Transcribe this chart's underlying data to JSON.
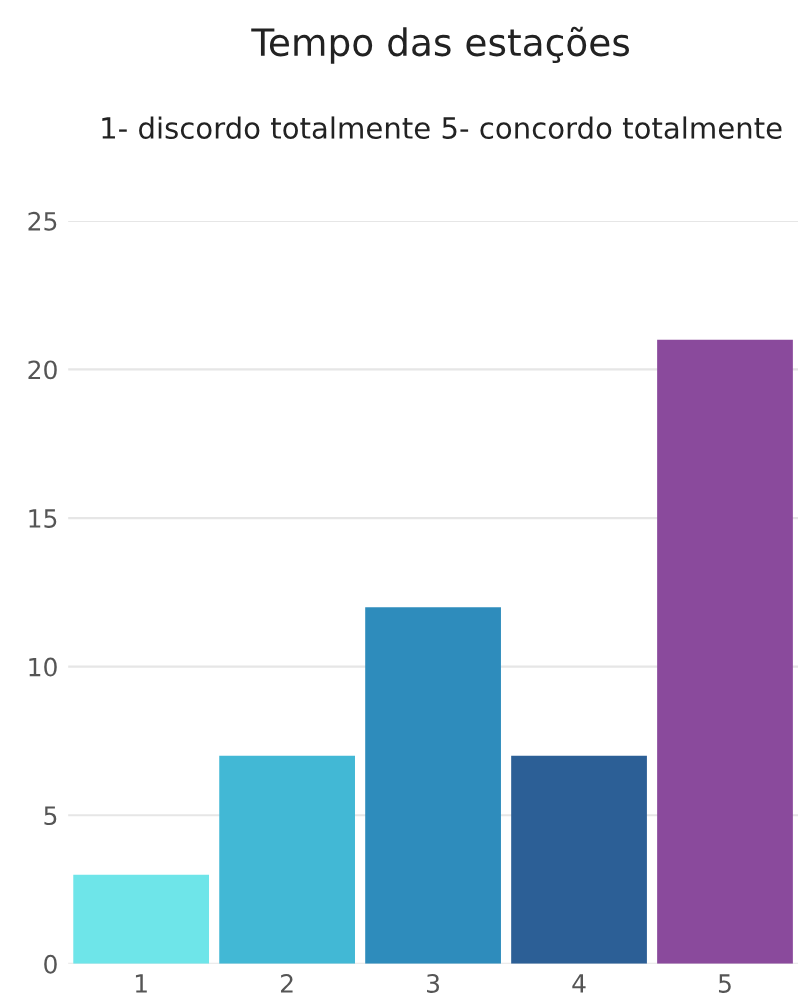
{
  "chart_data": {
    "type": "bar",
    "title": "Tempo das estações",
    "subtitle": "1- discordo totalmente 5- concordo totalmente",
    "categories": [
      "1",
      "2",
      "3",
      "4",
      "5"
    ],
    "values": [
      3,
      7,
      12,
      7,
      21
    ],
    "colors": [
      "#6ee5e9",
      "#42b8d5",
      "#2e8cbc",
      "#2c5f96",
      "#8a4a9c"
    ],
    "ylim": [
      0,
      25
    ],
    "yticks": [
      0,
      5,
      10,
      15,
      20,
      25
    ],
    "grid": "y",
    "legend": false
  }
}
